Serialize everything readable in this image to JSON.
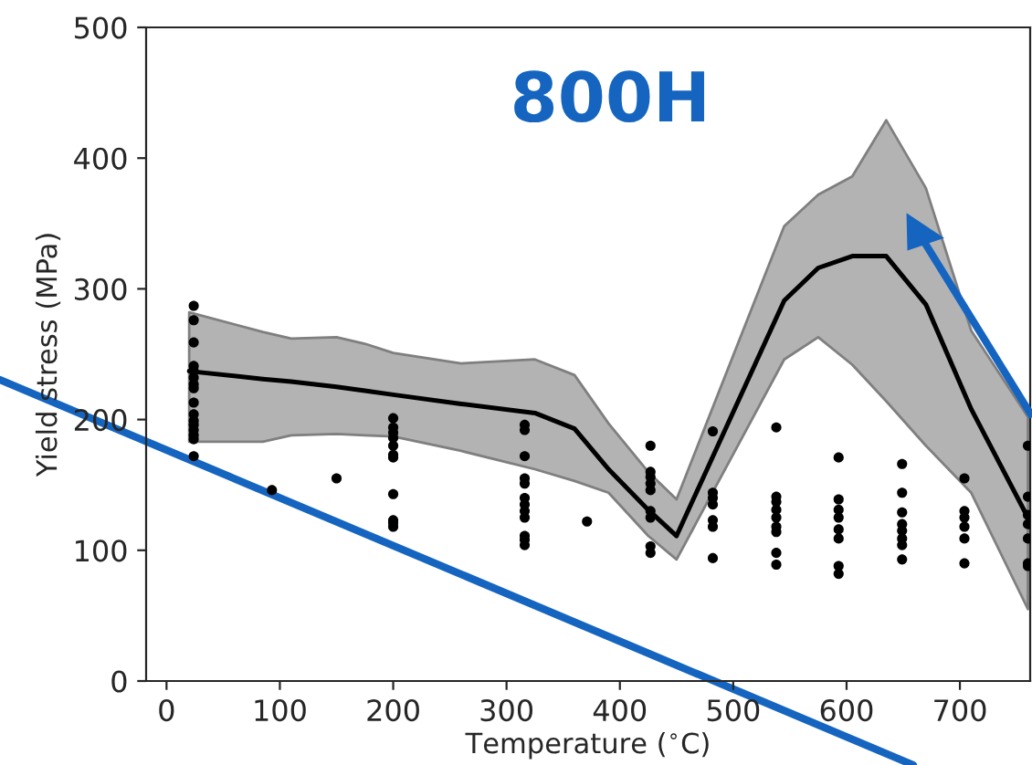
{
  "chart_data": {
    "type": "scatter",
    "xlabel": "Temperature ($^{∘}$C)",
    "ylabel": "Yield stress (MPa)",
    "annotations": [
      "800H"
    ],
    "xlim": [
      -18,
      762
    ],
    "ylim": [
      0,
      500
    ],
    "xticks": [
      0,
      100,
      200,
      300,
      400,
      500,
      600,
      700
    ],
    "yticks": [
      0,
      100,
      200,
      300,
      400,
      500
    ],
    "grid": false,
    "marker": "circle",
    "series": [
      {
        "color": "#000000",
        "x": [
          24,
          24,
          24,
          24,
          24,
          24,
          24,
          24,
          24,
          24,
          24,
          24,
          24,
          24,
          24,
          24,
          93,
          150,
          200,
          200,
          200,
          200,
          200,
          200,
          200,
          200,
          200,
          200,
          200,
          316,
          316,
          316,
          316,
          316,
          316,
          316,
          316,
          316,
          316,
          316,
          316,
          371,
          427,
          427,
          427,
          427,
          427,
          427,
          427,
          427,
          427,
          482,
          482,
          482,
          482,
          482,
          482,
          482,
          538,
          538,
          538,
          538,
          538,
          538,
          538,
          538,
          538,
          593,
          593,
          593,
          593,
          593,
          593,
          593,
          593,
          649,
          649,
          649,
          649,
          649,
          649,
          649,
          649,
          704,
          704,
          704,
          704,
          704,
          704,
          760,
          760,
          760,
          760,
          760,
          760,
          760
        ],
        "values": [
          287,
          276,
          259,
          241,
          237,
          232,
          227,
          224,
          213,
          204,
          199,
          196,
          192,
          188,
          185,
          172,
          146,
          155,
          201,
          194,
          190,
          186,
          180,
          173,
          171,
          143,
          123,
          121,
          118,
          196,
          192,
          172,
          155,
          151,
          140,
          135,
          130,
          125,
          111,
          108,
          104,
          122,
          180,
          160,
          156,
          151,
          146,
          130,
          125,
          103,
          98,
          191,
          144,
          140,
          135,
          123,
          118,
          94,
          194,
          141,
          137,
          131,
          125,
          118,
          114,
          98,
          89,
          171,
          139,
          131,
          125,
          116,
          109,
          88,
          82,
          166,
          144,
          129,
          120,
          115,
          109,
          104,
          93,
          155,
          130,
          125,
          118,
          109,
          90,
          180,
          141,
          127,
          120,
          109,
          90,
          88
        ]
      },
      {
        "type": "line",
        "color": "#000000",
        "line_style": "solid",
        "marker": "none",
        "x": [
          20,
          85,
          110,
          150,
          175,
          200,
          260,
          325,
          360,
          390,
          425,
          450,
          545,
          575,
          605,
          635,
          670,
          710,
          760
        ],
        "values": [
          237,
          231,
          229,
          225,
          222,
          219,
          212,
          205,
          193,
          162,
          131,
          111,
          291,
          316,
          325,
          325,
          288,
          208,
          125
        ],
        "lower": [
          183,
          183,
          188,
          189,
          188,
          187,
          176,
          162,
          153,
          144,
          111,
          93,
          246,
          263,
          242,
          214,
          180,
          144,
          55
        ],
        "upper": [
          282,
          267,
          262,
          263,
          258,
          251,
          243,
          246,
          234,
          197,
          160,
          139,
          348,
          372,
          386,
          429,
          377,
          268,
          202
        ]
      }
    ]
  }
}
